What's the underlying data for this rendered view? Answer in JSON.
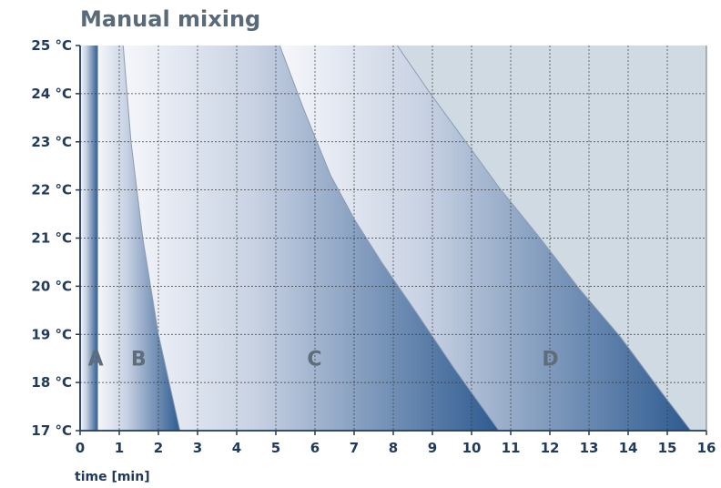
{
  "chart_data": {
    "type": "area",
    "title": "Manual mixing",
    "xlabel": "time [min]",
    "ylabel": "",
    "xlim": [
      0,
      16
    ],
    "ylim": [
      17,
      25
    ],
    "x_ticks": [
      "0",
      "1",
      "2",
      "3",
      "4",
      "5",
      "6",
      "7",
      "8",
      "9",
      "10",
      "11",
      "12",
      "13",
      "14",
      "15",
      "16"
    ],
    "y_ticks": [
      "17 °C",
      "18 °C",
      "19 °C",
      "20 °C",
      "21 °C",
      "22 °C",
      "23 °C",
      "24 °C",
      "25 °C"
    ],
    "grid": true,
    "zone_labels": [
      {
        "name": "A",
        "x": 0.2,
        "y": 18.5
      },
      {
        "name": "B",
        "x": 1.3,
        "y": 18.5
      },
      {
        "name": "C",
        "x": 5.8,
        "y": 18.5
      },
      {
        "name": "D",
        "x": 11.8,
        "y": 18.5
      }
    ],
    "boundaries": [
      {
        "name": "A",
        "points": [
          [
            0.45,
            25
          ],
          [
            0.45,
            17
          ]
        ]
      },
      {
        "name": "B",
        "points": [
          [
            1.1,
            25
          ],
          [
            1.3,
            23
          ],
          [
            1.6,
            21
          ],
          [
            2.0,
            19
          ],
          [
            2.55,
            17
          ]
        ]
      },
      {
        "name": "C",
        "points": [
          [
            5.1,
            25
          ],
          [
            5.7,
            23.7
          ],
          [
            6.4,
            22.3
          ],
          [
            7.0,
            21.4
          ],
          [
            7.7,
            20.5
          ],
          [
            8.55,
            19.5
          ],
          [
            9.55,
            18.3
          ],
          [
            10.7,
            17
          ]
        ]
      },
      {
        "name": "D",
        "points": [
          [
            8.1,
            25
          ],
          [
            8.95,
            24
          ],
          [
            9.85,
            23
          ],
          [
            10.75,
            22
          ],
          [
            11.75,
            21
          ],
          [
            12.75,
            19.95
          ],
          [
            13.8,
            18.95
          ],
          [
            14.85,
            17.8
          ],
          [
            15.6,
            17
          ]
        ]
      }
    ],
    "colors": {
      "dark": "#2e5b91",
      "light": "#f6f7fb",
      "outside": "#d0dae2",
      "grid": "#3a3a3a",
      "axis": "#1f3a5c",
      "title": "#5a6a79",
      "zone_label": "#5f6d7b"
    }
  }
}
